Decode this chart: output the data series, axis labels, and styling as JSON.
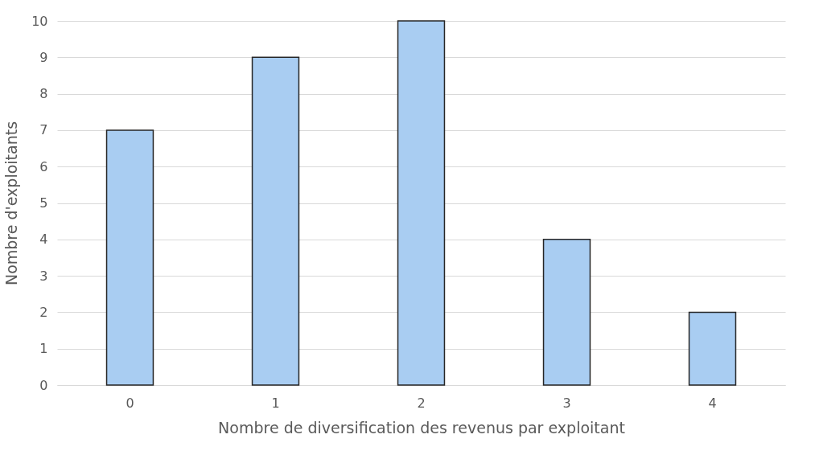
{
  "chart_data": {
    "type": "bar",
    "xlabel": "Nombre de diversification des revenus par exploitant",
    "ylabel": "Nombre d'exploitants",
    "categories": [
      "0",
      "1",
      "2",
      "3",
      "4"
    ],
    "values": [
      7,
      9,
      10,
      4,
      2
    ],
    "color": "#a9cdf2",
    "ylim": [
      0,
      10
    ],
    "yticks": [
      0,
      1,
      2,
      3,
      4,
      5,
      6,
      7,
      8,
      9,
      10
    ],
    "grid": "y"
  }
}
